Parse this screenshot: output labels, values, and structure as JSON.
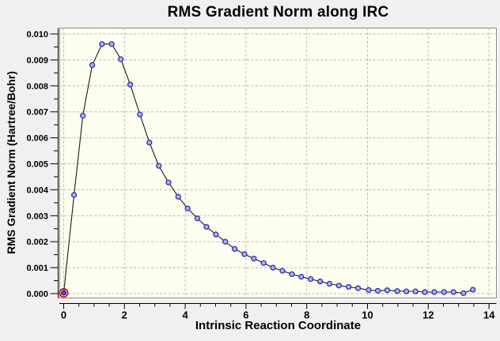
{
  "window": {
    "background": "#f0f0f0"
  },
  "chart_data": {
    "type": "line",
    "title": "RMS Gradient Norm along IRC",
    "xlabel": "Intrinsic Reaction Coordinate",
    "ylabel": "RMS Gradient Norm (Hartree/Bohr)",
    "xlim": [
      0,
      14
    ],
    "ylim": [
      0,
      0.01
    ],
    "x_major_tick": 2,
    "x_minor_tick": 0.5,
    "y_major_tick": 0.001,
    "y_minor_tick": 0.0005,
    "y_tick_decimals": 3,
    "grid": true,
    "legend_position": "none",
    "plot_bg": "#fdfdf0",
    "grid_color": "#b9b9b9",
    "axis_color": "#000000",
    "line_color": "#1a1a1a",
    "marker_edge_color": "#2323b8",
    "marker_fill_color": "#a9b3e6",
    "highlight_ring_color": "#d40000",
    "highlight_point_fill": "#3c50c8",
    "highlight_index": 0,
    "series": [
      {
        "name": "RMS Gradient Norm",
        "x": [
          0.0,
          0.34,
          0.63,
          0.94,
          1.26,
          1.58,
          1.88,
          2.19,
          2.51,
          2.82,
          3.13,
          3.45,
          3.77,
          4.08,
          4.4,
          4.7,
          5.01,
          5.32,
          5.63,
          5.95,
          6.26,
          6.58,
          6.89,
          7.2,
          7.51,
          7.82,
          8.13,
          8.44,
          8.75,
          9.06,
          9.38,
          9.69,
          10.04,
          10.34,
          10.65,
          10.98,
          11.28,
          11.58,
          11.89,
          12.2,
          12.52,
          12.83,
          13.16,
          13.47
        ],
        "y": [
          3e-05,
          0.0038,
          0.00685,
          0.0088,
          0.00961,
          0.00961,
          0.00903,
          0.00805,
          0.0069,
          0.00582,
          0.00492,
          0.00428,
          0.00373,
          0.00328,
          0.0029,
          0.00257,
          0.00228,
          0.002,
          0.00172,
          0.00152,
          0.00135,
          0.00118,
          0.001,
          0.00088,
          0.00075,
          0.00065,
          0.00056,
          0.00047,
          0.00038,
          0.00031,
          0.00026,
          0.00021,
          0.00014,
          0.00011,
          0.00013,
          0.0001,
          9e-05,
          9e-05,
          6e-05,
          6e-05,
          6e-05,
          6e-05,
          2e-05,
          0.00015
        ]
      }
    ]
  }
}
